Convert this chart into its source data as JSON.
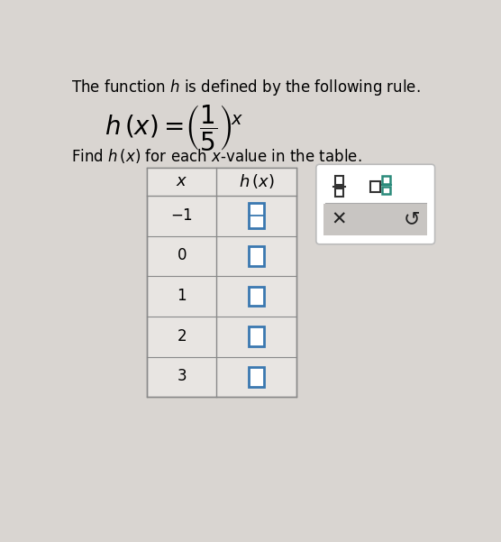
{
  "title_text": "The function $h$ is defined by the following rule.",
  "x_values": [
    -1,
    0,
    1,
    2,
    3
  ],
  "bg_color": "#d9d5d1",
  "cell_bg": "#e8e5e2",
  "white": "#ffffff",
  "border_color": "#8a8a8a",
  "input_border_color": "#3a78b0",
  "title_fontsize": 12,
  "subtitle_fontsize": 12,
  "table_fontsize": 11,
  "panel_border": "#bbbbbb",
  "teal_color": "#2a8a7a",
  "dark_color": "#222222",
  "gray_panel": "#c8c5c2"
}
